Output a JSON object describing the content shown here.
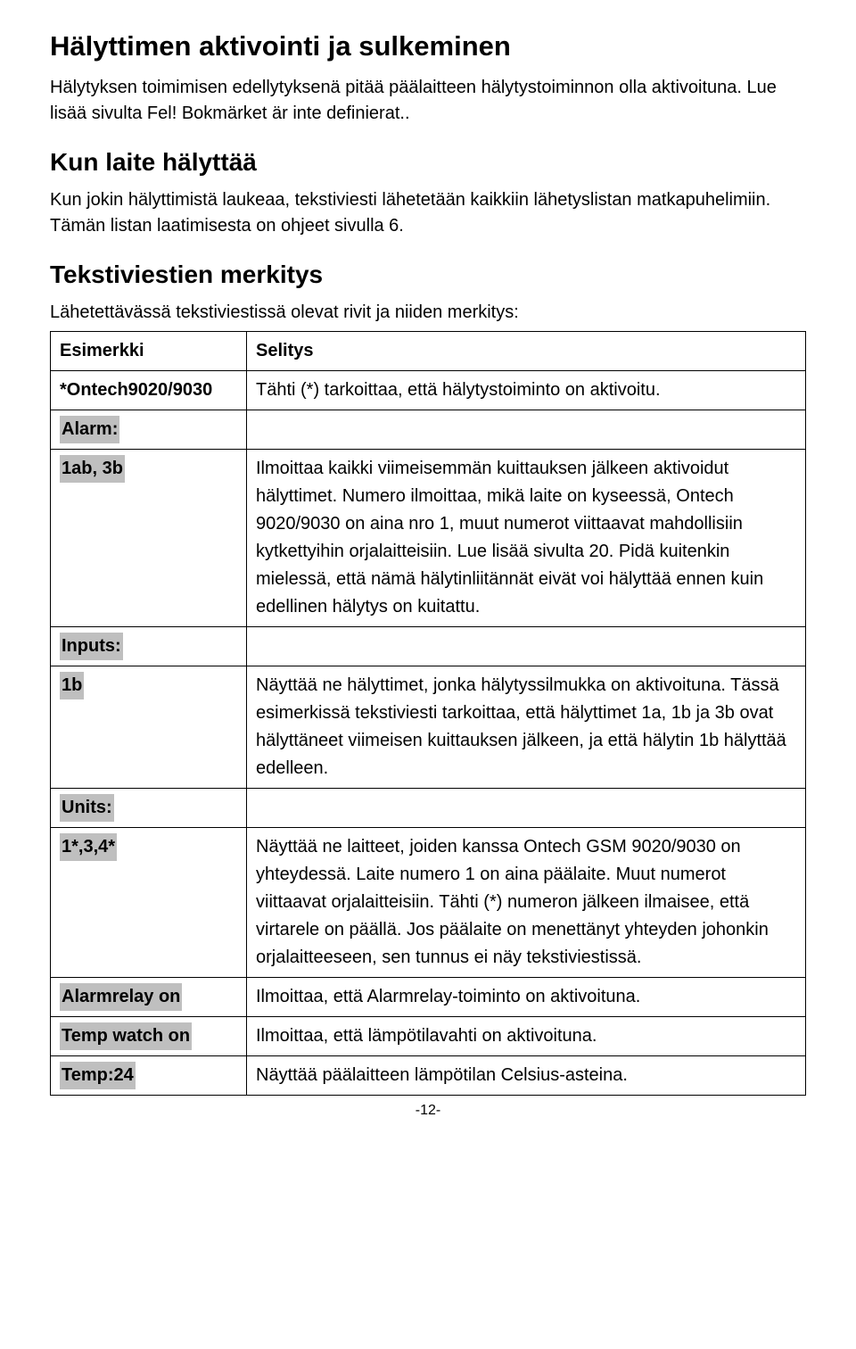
{
  "heading1": "Hälyttimen aktivointi ja sulkeminen",
  "para1": "Hälytyksen toimimisen edellytyksenä pitää päälaitteen hälytystoiminnon olla aktivoituna. Lue lisää sivulta Fel! Bokmärket är inte definierat..",
  "heading2": "Kun laite hälyttää",
  "para2": "Kun jokin hälyttimistä laukeaa, tekstiviesti lähetetään kaikkiin lähetyslistan matkapuhelimiin. Tämän listan laatimisesta on ohjeet sivulla 6.",
  "heading3": "Tekstiviestien merkitys",
  "para3": "Lähetettävässä tekstiviestissä olevat rivit ja niiden merkitys:",
  "table": {
    "rows": [
      {
        "left": "Esimerkki",
        "leftHighlighted": false,
        "right": "Selitys",
        "rightBold": true
      },
      {
        "left": "*Ontech9020/9030",
        "leftHighlighted": false,
        "right": "Tähti (*) tarkoittaa, että hälytystoiminto on aktivoitu.",
        "rightBold": false
      },
      {
        "left": "Alarm:",
        "leftHighlighted": true,
        "right": "",
        "rightBold": false
      },
      {
        "left": "1ab, 3b",
        "leftHighlighted": true,
        "right": "Ilmoittaa kaikki viimeisemmän kuittauksen jälkeen aktivoidut hälyttimet. Numero ilmoittaa, mikä laite on kyseessä, Ontech 9020/9030 on aina nro 1, muut numerot viittaavat mahdollisiin kytkettyihin orjalaitteisiin. Lue lisää sivulta 20. Pidä kuitenkin mielessä, että nämä hälytinliitännät eivät voi hälyttää ennen kuin edellinen hälytys on kuitattu.",
        "rightBold": false
      },
      {
        "left": "Inputs:",
        "leftHighlighted": true,
        "right": "",
        "rightBold": false
      },
      {
        "left": "1b",
        "leftHighlighted": true,
        "right": "Näyttää ne hälyttimet, jonka hälytyssilmukka on aktivoituna. Tässä esimerkissä tekstiviesti tarkoittaa, että hälyttimet 1a, 1b ja 3b ovat hälyttäneet viimeisen kuittauksen jälkeen, ja että hälytin 1b hälyttää edelleen.",
        "rightBold": false
      },
      {
        "left": "Units:",
        "leftHighlighted": true,
        "right": "",
        "rightBold": false
      },
      {
        "left": "1*,3,4*",
        "leftHighlighted": true,
        "right": "Näyttää ne laitteet, joiden kanssa Ontech GSM 9020/9030 on yhteydessä. Laite numero 1 on aina päälaite. Muut numerot viittaavat orjalaitteisiin. Tähti (*) numeron jälkeen ilmaisee, että virtarele on päällä. Jos päälaite on menettänyt yhteyden johonkin orjalaitteeseen, sen tunnus ei näy tekstiviestissä.",
        "rightBold": false
      },
      {
        "left": "Alarmrelay on",
        "leftHighlighted": true,
        "right": "Ilmoittaa, että Alarmrelay-toiminto on aktivoituna.",
        "rightBold": false
      },
      {
        "left": "Temp watch on",
        "leftHighlighted": true,
        "right": "Ilmoittaa, että lämpötilavahti on aktivoituna.",
        "rightBold": false
      },
      {
        "left": "Temp:24",
        "leftHighlighted": true,
        "right": "Näyttää päälaitteen lämpötilan Celsius-asteina.",
        "rightBold": false
      }
    ]
  },
  "footer": "-12-"
}
